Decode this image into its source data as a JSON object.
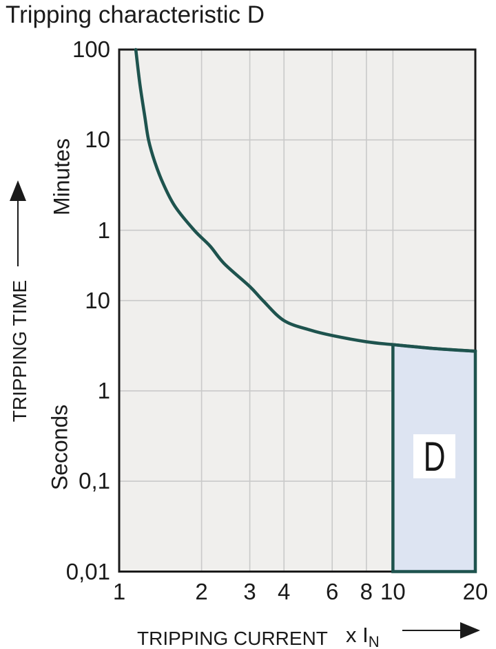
{
  "page_title": "Tripping characteristic D",
  "colors": {
    "curve_teal": "#1e534e",
    "region_fill": "#dde4f2",
    "plot_background": "#f0efed",
    "grid_line": "#c9c9c9",
    "axis_black": "#1a1a1a",
    "region_label_background": "#ffffff",
    "text": "#1a1a1a"
  },
  "chart_data": {
    "type": "line",
    "title": "Tripping characteristic D",
    "x_axis": {
      "label": "TRIPPING CURRENT",
      "unit_prefix": "x I",
      "unit_subscript": "N",
      "scale": "log",
      "range": [
        1,
        20
      ],
      "ticks": [
        {
          "label": "1",
          "value": 1
        },
        {
          "label": "2",
          "value": 2
        },
        {
          "label": "3",
          "value": 3
        },
        {
          "label": "4",
          "value": 4
        },
        {
          "label": "6",
          "value": 6
        },
        {
          "label": "8",
          "value": 8
        },
        {
          "label": "10",
          "value": 10
        },
        {
          "label": "20",
          "value": 20
        }
      ]
    },
    "y_axis": {
      "label": "TRIPPING TIME",
      "scale": "log",
      "top_seconds": 6000,
      "bottom_seconds": 0.01,
      "unit_sections": [
        {
          "label": "Minutes"
        },
        {
          "label": "Seconds"
        }
      ],
      "ticks": [
        {
          "label": "100",
          "unit": "minutes",
          "seconds": 6000
        },
        {
          "label": "10",
          "unit": "minutes",
          "seconds": 600
        },
        {
          "label": "1",
          "unit": "minutes",
          "seconds": 60
        },
        {
          "label": "10",
          "unit": "seconds",
          "seconds": 10
        },
        {
          "label": "1",
          "unit": "seconds",
          "seconds": 1
        },
        {
          "label": "0,1",
          "unit": "seconds",
          "seconds": 0.1
        },
        {
          "label": "0,01",
          "unit": "seconds",
          "seconds": 0.01
        }
      ]
    },
    "series": [
      {
        "name": "thermal-tripping-curve",
        "points_current_vs_seconds": [
          [
            1.15,
            6000
          ],
          [
            1.19,
            2500
          ],
          [
            1.24,
            1100
          ],
          [
            1.28,
            600
          ],
          [
            1.35,
            340
          ],
          [
            1.45,
            195
          ],
          [
            1.6,
            110
          ],
          [
            1.88,
            60
          ],
          [
            2.15,
            40
          ],
          [
            2.42,
            25.6
          ],
          [
            3.0,
            14.3
          ],
          [
            3.35,
            10
          ],
          [
            4.0,
            6.0
          ],
          [
            5.0,
            4.7
          ],
          [
            6.0,
            4.1
          ],
          [
            8.0,
            3.5
          ],
          [
            10.0,
            3.25
          ],
          [
            14.0,
            2.95
          ],
          [
            20.0,
            2.75
          ]
        ]
      }
    ],
    "region": {
      "label": "D",
      "x_from": 10,
      "x_to": 20,
      "bottom_seconds": 0.01
    }
  }
}
